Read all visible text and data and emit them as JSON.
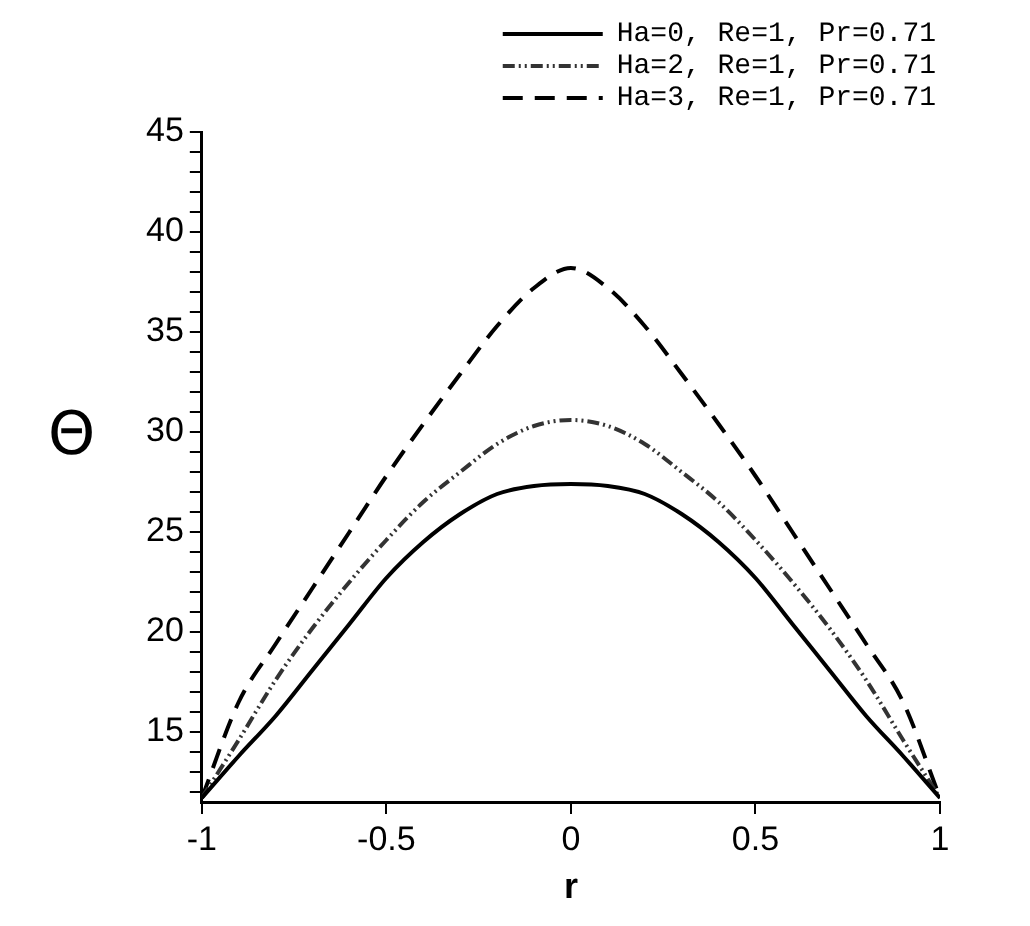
{
  "chart_data": {
    "type": "line",
    "xlabel": "r",
    "ylabel": "Θ",
    "xlim": [
      -1,
      1
    ],
    "xticks": [
      -1,
      -0.5,
      0,
      0.5,
      1
    ],
    "ylim": [
      11.5,
      45
    ],
    "yticks": [
      {
        "value": 12,
        "label": null
      },
      {
        "value": 13,
        "label": null
      },
      {
        "value": 14,
        "label": null
      },
      15,
      {
        "value": 16,
        "label": null
      },
      {
        "value": 17,
        "label": null
      },
      {
        "value": 18,
        "label": null
      },
      {
        "value": 19,
        "label": null
      },
      20,
      {
        "value": 21,
        "label": null
      },
      {
        "value": 22,
        "label": null
      },
      {
        "value": 23,
        "label": null
      },
      {
        "value": 24,
        "label": null
      },
      25,
      {
        "value": 26,
        "label": null
      },
      {
        "value": 27,
        "label": null
      },
      {
        "value": 28,
        "label": null
      },
      {
        "value": 29,
        "label": null
      },
      30,
      {
        "value": 31,
        "label": null
      },
      {
        "value": 32,
        "label": null
      },
      {
        "value": 33,
        "label": null
      },
      {
        "value": 34,
        "label": null
      },
      35,
      {
        "value": 36,
        "label": null
      },
      {
        "value": 37,
        "label": null
      },
      {
        "value": 38,
        "label": null
      },
      {
        "value": 39,
        "label": null
      },
      40,
      {
        "value": 41,
        "label": null
      },
      {
        "value": 42,
        "label": null
      },
      {
        "value": 43,
        "label": null
      },
      {
        "value": 44,
        "label": null
      },
      45
    ],
    "x": [
      -1,
      -0.9,
      -0.8,
      -0.7,
      -0.6,
      -0.5,
      -0.4,
      -0.3,
      -0.2,
      -0.1,
      0,
      0.1,
      0.2,
      0.3,
      0.4,
      0.5,
      0.6,
      0.7,
      0.8,
      0.9,
      1
    ],
    "grid": false,
    "legend": "top right",
    "marker": "none",
    "series": [
      {
        "name": "Ha=0, Re=1, Pr=0.71",
        "color": "#000000",
        "line_style": "solid",
        "values": [
          11.7,
          13.8,
          15.8,
          18.1,
          20.4,
          22.7,
          24.5,
          25.9,
          26.9,
          27.3,
          27.4,
          27.3,
          26.9,
          25.9,
          24.5,
          22.7,
          20.4,
          18.1,
          15.8,
          13.8,
          11.7
        ]
      },
      {
        "name": "Ha=2, Re=1, Pr=0.71",
        "color": "#333333",
        "line_style": "dashdotdot",
        "values": [
          11.7,
          14.6,
          17.6,
          20.2,
          22.5,
          24.6,
          26.5,
          28.0,
          29.4,
          30.3,
          30.6,
          30.3,
          29.4,
          28.0,
          26.5,
          24.6,
          22.5,
          20.2,
          17.6,
          14.6,
          11.7
        ]
      },
      {
        "name": "Ha=3, Re=1, Pr=0.71",
        "color": "#000000",
        "line_style": "dashed",
        "values": [
          11.7,
          16.5,
          19.4,
          22.2,
          25.0,
          27.8,
          30.4,
          32.9,
          35.3,
          37.2,
          38.2,
          37.2,
          35.3,
          32.9,
          30.4,
          27.8,
          25.0,
          22.2,
          19.4,
          16.5,
          11.7
        ]
      }
    ]
  }
}
